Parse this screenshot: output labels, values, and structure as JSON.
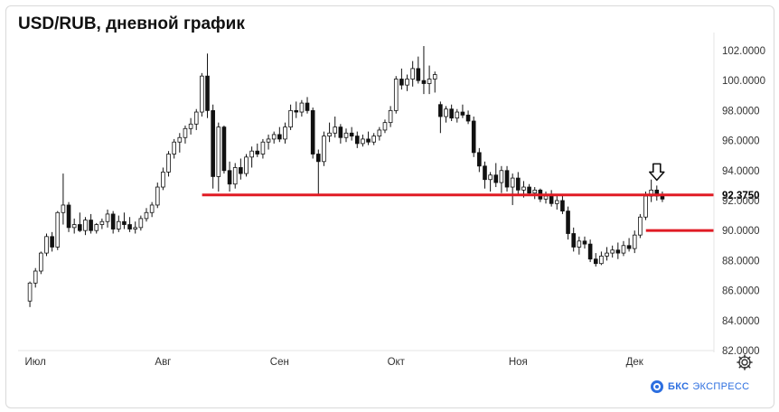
{
  "title": "USD/RUB, дневной график",
  "brand": {
    "name": "БКС",
    "suffix": "ЭКСПРЕСС"
  },
  "colors": {
    "up": "#ffffff",
    "down": "#111111",
    "wick": "#111111",
    "level": "#e01b24"
  },
  "icons": {
    "settings": "gear-icon",
    "marker": "down-arrow-icon",
    "brand": "bks-logo-icon"
  },
  "chart_data": {
    "type": "candlestick",
    "title": "USD/RUB, дневной график",
    "ylim": [
      82,
      102.6
    ],
    "y_ticks": [
      "82.0000",
      "84.0000",
      "86.0000",
      "88.0000",
      "90.0000",
      "92.0000",
      "94.0000",
      "96.0000",
      "98.0000",
      "100.0000",
      "102.0000"
    ],
    "x_ticks": [
      {
        "label": "Июл",
        "index": 1
      },
      {
        "label": "Авг",
        "index": 24
      },
      {
        "label": "Сен",
        "index": 45
      },
      {
        "label": "Окт",
        "index": 66
      },
      {
        "label": "Ноя",
        "index": 88
      },
      {
        "label": "Дек",
        "index": 109
      }
    ],
    "levels": [
      {
        "value": 92.375,
        "label": "92.3750",
        "from_index": 32,
        "highlight": true
      },
      {
        "value": 90.0,
        "from_index": 112,
        "highlight": false
      }
    ],
    "marker": {
      "index": 113,
      "type": "down-arrow"
    },
    "candles": [
      [
        85.3,
        86.6,
        84.9,
        86.5
      ],
      [
        86.5,
        87.5,
        86.2,
        87.3
      ],
      [
        87.3,
        88.6,
        87.1,
        88.5
      ],
      [
        88.5,
        89.8,
        88.3,
        89.6
      ],
      [
        89.6,
        89.9,
        88.6,
        88.9
      ],
      [
        88.9,
        91.3,
        88.7,
        91.2
      ],
      [
        91.2,
        93.8,
        90.4,
        91.7
      ],
      [
        91.7,
        91.9,
        89.9,
        90.2
      ],
      [
        90.2,
        90.8,
        89.8,
        90.4
      ],
      [
        90.4,
        91.2,
        89.9,
        90.0
      ],
      [
        90.0,
        90.9,
        89.7,
        90.7
      ],
      [
        90.7,
        91.1,
        89.8,
        90.0
      ],
      [
        90.0,
        90.5,
        89.8,
        90.4
      ],
      [
        90.4,
        90.8,
        90.1,
        90.6
      ],
      [
        90.6,
        91.4,
        90.2,
        91.1
      ],
      [
        91.1,
        91.3,
        89.8,
        90.1
      ],
      [
        90.1,
        91.0,
        89.9,
        90.6
      ],
      [
        90.6,
        91.2,
        90.1,
        90.4
      ],
      [
        90.4,
        90.9,
        89.9,
        90.1
      ],
      [
        90.1,
        90.6,
        89.8,
        90.2
      ],
      [
        90.2,
        91.0,
        90.0,
        90.8
      ],
      [
        90.8,
        91.5,
        90.6,
        91.2
      ],
      [
        91.2,
        91.9,
        90.9,
        91.7
      ],
      [
        91.7,
        93.2,
        91.5,
        92.9
      ],
      [
        92.9,
        94.2,
        92.7,
        93.9
      ],
      [
        93.9,
        95.3,
        93.6,
        95.1
      ],
      [
        95.1,
        96.1,
        94.8,
        95.9
      ],
      [
        95.9,
        96.5,
        95.2,
        96.2
      ],
      [
        96.2,
        97.0,
        95.8,
        96.8
      ],
      [
        96.8,
        97.5,
        96.4,
        97.1
      ],
      [
        97.1,
        98.1,
        96.7,
        97.9
      ],
      [
        97.9,
        100.5,
        97.6,
        100.3
      ],
      [
        100.3,
        101.8,
        97.5,
        98.0
      ],
      [
        98.0,
        98.4,
        92.8,
        93.6
      ],
      [
        93.6,
        97.2,
        92.6,
        96.9
      ],
      [
        96.9,
        97.0,
        93.8,
        94.0
      ],
      [
        94.0,
        94.6,
        92.6,
        93.1
      ],
      [
        93.1,
        94.5,
        92.8,
        94.2
      ],
      [
        94.2,
        94.8,
        93.4,
        93.8
      ],
      [
        93.8,
        95.1,
        93.6,
        94.9
      ],
      [
        94.9,
        95.6,
        94.2,
        95.3
      ],
      [
        95.3,
        95.8,
        94.9,
        95.1
      ],
      [
        95.1,
        96.1,
        94.8,
        95.9
      ],
      [
        95.9,
        96.4,
        95.4,
        96.1
      ],
      [
        96.1,
        96.6,
        95.8,
        96.4
      ],
      [
        96.4,
        96.9,
        95.9,
        96.1
      ],
      [
        96.1,
        97.2,
        95.8,
        96.9
      ],
      [
        96.9,
        98.4,
        96.7,
        98.0
      ],
      [
        98.0,
        98.6,
        97.5,
        97.9
      ],
      [
        97.9,
        98.7,
        97.6,
        98.5
      ],
      [
        98.5,
        98.9,
        97.8,
        98.0
      ],
      [
        98.0,
        98.2,
        94.8,
        95.1
      ],
      [
        95.1,
        95.4,
        92.4,
        94.6
      ],
      [
        94.6,
        96.6,
        94.3,
        96.3
      ],
      [
        96.3,
        97.2,
        95.9,
        96.5
      ],
      [
        96.5,
        97.6,
        96.2,
        96.9
      ],
      [
        96.9,
        97.1,
        95.8,
        96.2
      ],
      [
        96.2,
        96.8,
        95.9,
        96.5
      ],
      [
        96.5,
        96.9,
        96.0,
        96.3
      ],
      [
        96.3,
        96.6,
        95.5,
        95.8
      ],
      [
        95.8,
        96.4,
        95.6,
        96.1
      ],
      [
        96.1,
        96.6,
        95.7,
        95.9
      ],
      [
        95.9,
        96.5,
        95.7,
        96.3
      ],
      [
        96.3,
        96.9,
        96.0,
        96.7
      ],
      [
        96.7,
        97.4,
        96.5,
        97.2
      ],
      [
        97.2,
        98.3,
        96.9,
        98.0
      ],
      [
        98.0,
        100.3,
        97.8,
        100.1
      ],
      [
        100.1,
        100.8,
        99.4,
        99.7
      ],
      [
        99.7,
        100.4,
        99.3,
        100.1
      ],
      [
        100.1,
        101.3,
        99.6,
        100.8
      ],
      [
        100.8,
        101.6,
        99.8,
        100.0
      ],
      [
        100.0,
        102.3,
        99.1,
        99.8
      ],
      [
        99.8,
        101.0,
        99.1,
        100.1
      ],
      [
        100.1,
        100.6,
        99.2,
        100.4
      ],
      [
        98.4,
        98.6,
        96.5,
        97.6
      ],
      [
        97.6,
        98.3,
        97.2,
        98.1
      ],
      [
        98.1,
        98.4,
        97.3,
        97.5
      ],
      [
        97.5,
        98.1,
        97.2,
        97.9
      ],
      [
        97.9,
        98.4,
        97.5,
        97.7
      ],
      [
        97.7,
        98.0,
        97.1,
        97.3
      ],
      [
        97.3,
        97.6,
        94.9,
        95.2
      ],
      [
        95.2,
        95.5,
        93.9,
        94.3
      ],
      [
        94.3,
        94.6,
        92.8,
        93.4
      ],
      [
        93.4,
        93.9,
        92.6,
        93.7
      ],
      [
        93.7,
        94.5,
        92.9,
        93.2
      ],
      [
        93.2,
        94.3,
        92.5,
        94.0
      ],
      [
        94.0,
        94.3,
        92.6,
        92.9
      ],
      [
        92.9,
        93.8,
        91.7,
        93.5
      ],
      [
        93.5,
        93.9,
        92.4,
        92.7
      ],
      [
        92.7,
        93.3,
        92.2,
        92.9
      ],
      [
        92.9,
        93.1,
        92.3,
        92.5
      ],
      [
        92.5,
        92.9,
        92.1,
        92.7
      ],
      [
        92.7,
        92.8,
        91.9,
        92.1
      ],
      [
        92.1,
        92.6,
        91.8,
        92.3
      ],
      [
        92.3,
        92.7,
        91.6,
        91.8
      ],
      [
        91.8,
        92.3,
        91.4,
        92.0
      ],
      [
        92.0,
        92.4,
        91.1,
        91.3
      ],
      [
        91.3,
        91.6,
        89.4,
        89.8
      ],
      [
        89.8,
        90.2,
        88.6,
        88.9
      ],
      [
        88.9,
        89.6,
        88.4,
        89.3
      ],
      [
        89.3,
        89.6,
        88.8,
        89.1
      ],
      [
        89.1,
        89.4,
        87.9,
        88.1
      ],
      [
        88.1,
        88.5,
        87.6,
        87.8
      ],
      [
        87.8,
        88.6,
        87.7,
        88.3
      ],
      [
        88.3,
        88.9,
        88.0,
        88.5
      ],
      [
        88.5,
        89.0,
        88.2,
        88.7
      ],
      [
        88.7,
        89.2,
        88.1,
        88.5
      ],
      [
        88.5,
        89.3,
        88.3,
        89.0
      ],
      [
        89.0,
        89.5,
        88.6,
        88.8
      ],
      [
        88.8,
        90.0,
        88.5,
        89.7
      ],
      [
        89.7,
        91.1,
        89.5,
        90.9
      ],
      [
        90.9,
        92.6,
        90.7,
        92.3
      ],
      [
        92.3,
        93.4,
        91.9,
        92.7
      ],
      [
        92.7,
        93.0,
        92.0,
        92.3
      ],
      [
        92.3,
        92.6,
        91.9,
        92.1
      ]
    ]
  }
}
